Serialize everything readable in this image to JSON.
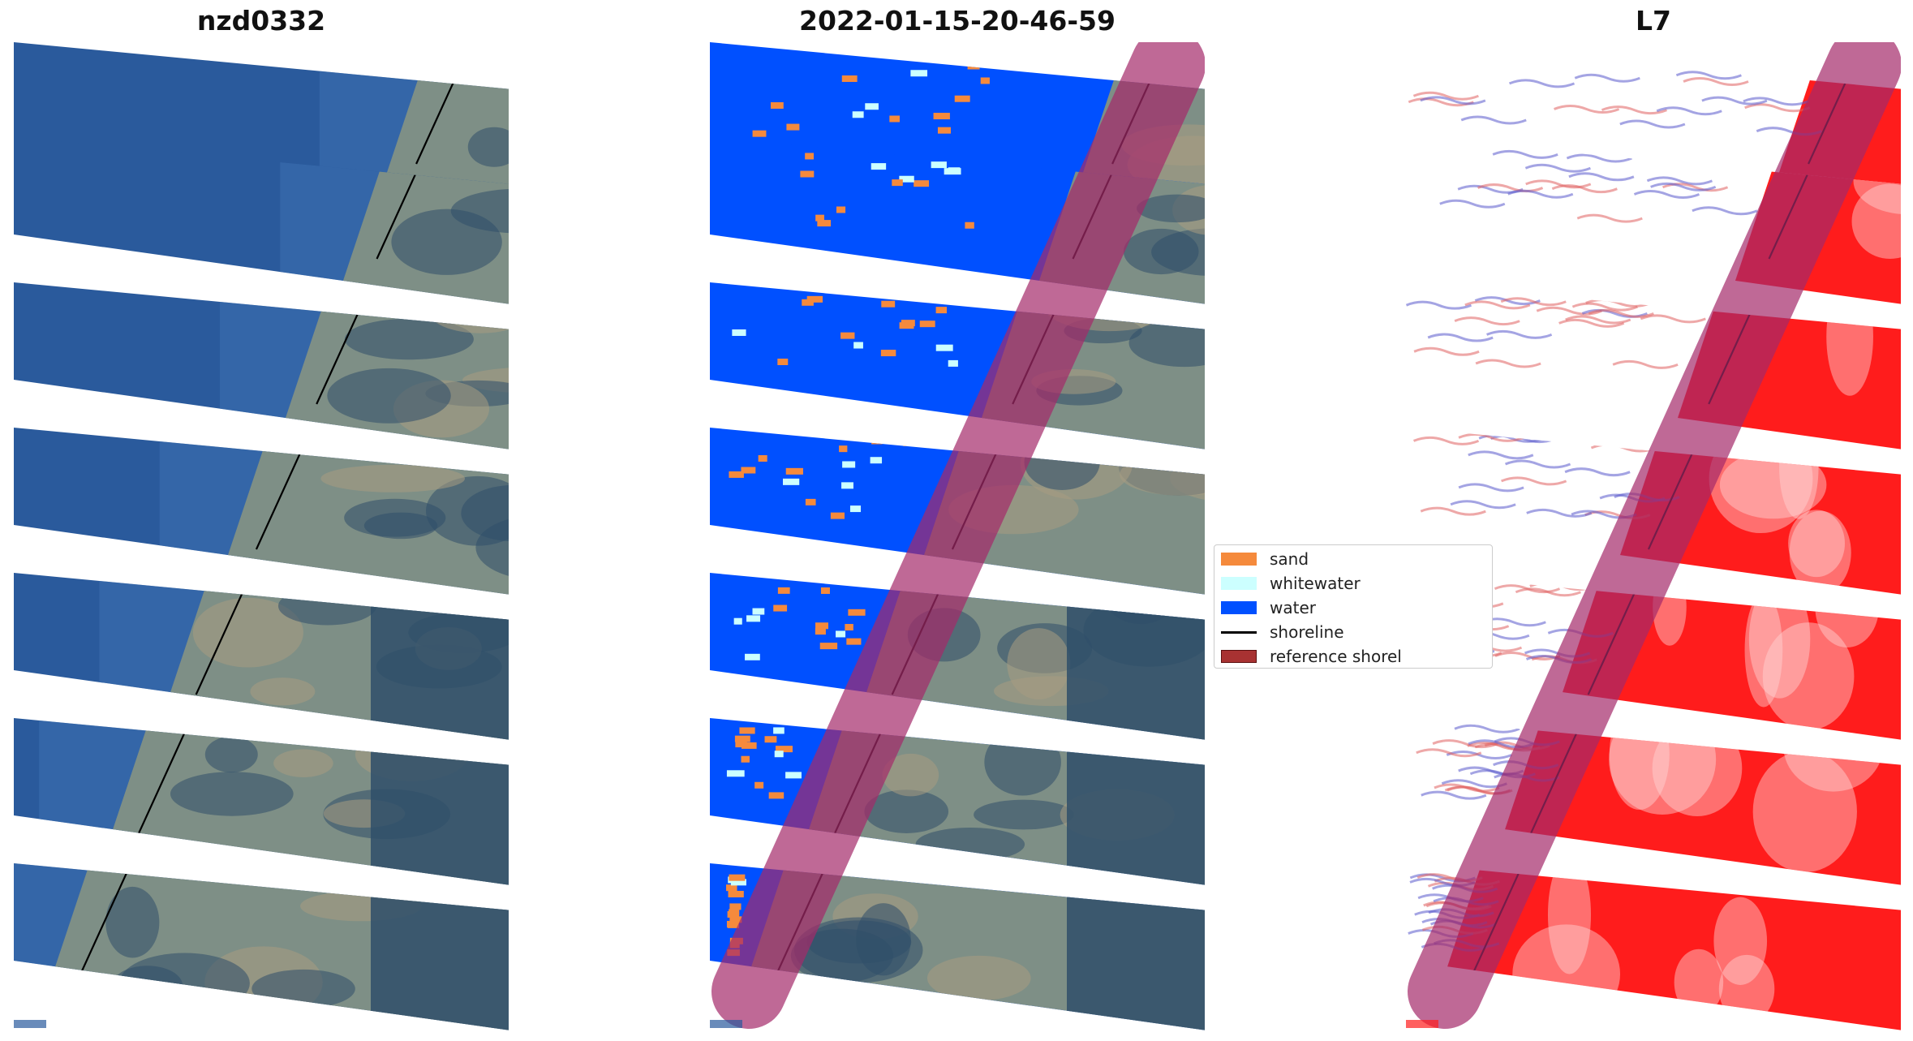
{
  "panels": [
    {
      "title": "nzd0332",
      "mode": "rgb"
    },
    {
      "title": "2022-01-15-20-46-59",
      "mode": "classified"
    },
    {
      "title": "L7",
      "mode": "index"
    }
  ],
  "legend": {
    "items": [
      {
        "label": "sand",
        "kind": "patch",
        "color": "#f58a3c"
      },
      {
        "label": "whitewater",
        "kind": "patch",
        "color": "#ccffff"
      },
      {
        "label": "water",
        "kind": "patch",
        "color": "#0050ff"
      },
      {
        "label": "shoreline",
        "kind": "line",
        "color": "#000000"
      },
      {
        "label": "reference shorel",
        "kind": "patch",
        "color": "#a83232"
      }
    ]
  },
  "colors": {
    "ocean": "#2a5a9c",
    "ocean_deep": "#24508f",
    "land": "#7e8f86",
    "land_dark": "#2f4f6a",
    "class_water": "#0050ff",
    "class_sand": "#f58a3c",
    "class_whitewater": "#ccffff",
    "index_red": "#ff1c1c",
    "buffer": "#a52a6a",
    "shoreline": "#000000"
  },
  "icons": [
    "shoreline-line",
    "reference-buffer-band"
  ]
}
